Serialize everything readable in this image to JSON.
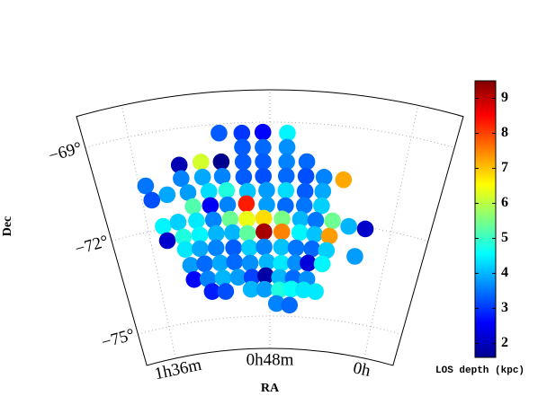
{
  "chart_data": {
    "type": "scatter",
    "xlabel": "RA",
    "ylabel": "Dec",
    "colorbar_label": "LOS depth (kpc)",
    "xlim": [
      1.85,
      -0.25
    ],
    "ylim": [
      -76,
      -68
    ],
    "xticks": [
      {
        "value": 1.6,
        "label": "1h36m"
      },
      {
        "value": 0.8,
        "label": "0h48m"
      },
      {
        "value": 0,
        "label": "0h"
      }
    ],
    "yticks": [
      {
        "value": -69,
        "label": "−69°"
      },
      {
        "value": -72,
        "label": "−72°"
      },
      {
        "value": -75,
        "label": "−75°"
      }
    ],
    "grid": true,
    "colormap": "jet",
    "clim": [
      1.6,
      9.5
    ],
    "cticks": [
      2,
      3,
      4,
      5,
      6,
      7,
      8,
      9
    ],
    "x": [
      1.09,
      0.96,
      0.84,
      0.7,
      0.96,
      0.84,
      0.7,
      1.34,
      1.21,
      1.09,
      0.96,
      0.84,
      0.7,
      0.58,
      1.34,
      1.21,
      1.09,
      0.96,
      0.84,
      0.7,
      0.58,
      0.47,
      0.35,
      1.56,
      1.44,
      1.54,
      1.31,
      1.18,
      1.07,
      0.94,
      0.82,
      0.7,
      0.58,
      0.47,
      1.29,
      1.18,
      1.07,
      0.95,
      0.82,
      0.7,
      0.58,
      0.47,
      1.5,
      1.4,
      1.28,
      1.17,
      1.06,
      0.95,
      0.84,
      0.72,
      0.6,
      0.5,
      0.39,
      0.28,
      0.17,
      1.49,
      1.38,
      1.27,
      1.16,
      1.05,
      0.95,
      0.84,
      0.72,
      0.6,
      0.5,
      0.4,
      1.38,
      1.28,
      1.17,
      1.05,
      0.94,
      0.84,
      0.72,
      0.62,
      0.51,
      0.41,
      0.21,
      1.36,
      1.26,
      1.15,
      1.05,
      0.94,
      0.82,
      0.72,
      0.62,
      0.53,
      0.43,
      1.35,
      1.25,
      1.14,
      1.03,
      0.93,
      0.83,
      0.73,
      0.63,
      0.53,
      1.23,
      1.13,
      0.94,
      0.84,
      0.73,
      0.64,
      0.55,
      0.46,
      0.75,
      0.65
    ],
    "y": [
      -69.28,
      -69.32,
      -69.31,
      -69.33,
      -69.76,
      -69.78,
      -69.77,
      -70.13,
      -70.12,
      -70.17,
      -70.21,
      -70.22,
      -70.22,
      -70.19,
      -70.55,
      -70.59,
      -70.62,
      -70.68,
      -70.67,
      -70.66,
      -70.64,
      -70.63,
      -70.65,
      -70.59,
      -70.98,
      -71.06,
      -71.01,
      -71.05,
      -71.07,
      -71.13,
      -71.11,
      -71.11,
      -71.11,
      -71.07,
      -71.46,
      -71.49,
      -71.51,
      -71.51,
      -71.56,
      -71.58,
      -71.55,
      -71.52,
      -71.92,
      -71.87,
      -71.91,
      -71.94,
      -71.96,
      -71.99,
      -71.97,
      -71.99,
      -71.98,
      -71.98,
      -71.95,
      -72.06,
      -72.06,
      -72.38,
      -72.35,
      -72.36,
      -72.37,
      -72.38,
      -72.43,
      -72.39,
      -72.39,
      -72.39,
      -72.42,
      -72.43,
      -72.74,
      -72.78,
      -72.81,
      -72.85,
      -72.88,
      -72.86,
      -72.86,
      -72.87,
      -72.87,
      -72.88,
      -72.95,
      -73.25,
      -73.26,
      -73.29,
      -73.29,
      -73.35,
      -73.33,
      -73.36,
      -73.34,
      -73.32,
      -73.31,
      -73.7,
      -73.74,
      -73.76,
      -73.77,
      -73.79,
      -73.75,
      -73.8,
      -73.81,
      -73.82,
      -74.14,
      -74.18,
      -74.16,
      -74.17,
      -74.19,
      -74.15,
      -74.16,
      -74.18,
      -74.61,
      -74.65
    ],
    "values": [
      3.3,
      3.0,
      2.6,
      4.5,
      3.3,
      3.4,
      3.7,
      2.0,
      6.2,
      1.7,
      3.3,
      3.3,
      3.6,
      3.4,
      3.6,
      3.9,
      3.6,
      3.3,
      3.2,
      3.4,
      3.2,
      3.6,
      7.2,
      3.5,
      3.9,
      3.2,
      3.8,
      4.3,
      4.8,
      4.1,
      3.8,
      4.3,
      3.3,
      3.9,
      5.2,
      2.5,
      3.6,
      8.3,
      3.8,
      3.4,
      3.5,
      4.2,
      4.5,
      4.2,
      4.4,
      3.6,
      5.4,
      6.4,
      6.8,
      5.5,
      4.0,
      3.5,
      5.4,
      4.0,
      2.2,
      2.2,
      4.8,
      4.5,
      4.0,
      4.0,
      5.3,
      9.2,
      7.5,
      4.5,
      4.1,
      7.3,
      4.4,
      3.9,
      3.6,
      3.3,
      4.2,
      3.6,
      4.1,
      3.5,
      3.4,
      4.2,
      3.8,
      3.8,
      3.4,
      3.9,
      3.4,
      3.7,
      4.0,
      4.4,
      3.7,
      2.3,
      4.5,
      2.6,
      3.6,
      4.0,
      3.8,
      3.1,
      1.9,
      4.0,
      3.4,
      3.7,
      2.8,
      3.2,
      4.0,
      3.8,
      4.8,
      4.6,
      4.4,
      4.4,
      3.6,
      3.4
    ]
  }
}
